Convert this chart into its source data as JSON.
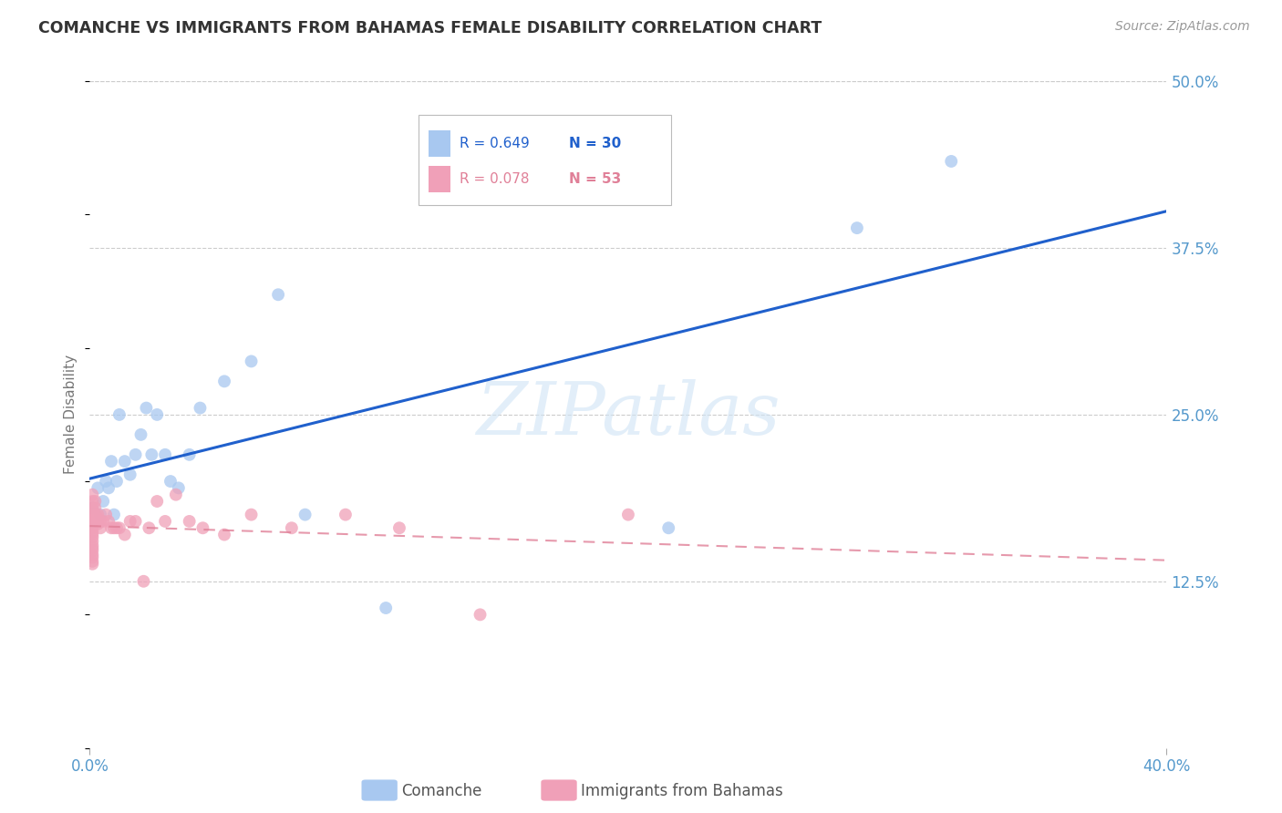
{
  "title": "COMANCHE VS IMMIGRANTS FROM BAHAMAS FEMALE DISABILITY CORRELATION CHART",
  "source": "Source: ZipAtlas.com",
  "ylabel": "Female Disability",
  "xlim": [
    0.0,
    0.4
  ],
  "ylim": [
    0.0,
    0.5
  ],
  "ytick_values": [
    0.125,
    0.25,
    0.375,
    0.5
  ],
  "ytick_labels": [
    "12.5%",
    "25.0%",
    "37.5%",
    "50.0%"
  ],
  "background_color": "#ffffff",
  "grid_color": "#cccccc",
  "comanche_color": "#A8C8F0",
  "bahamas_color": "#F0A0B8",
  "trend_blue": "#2060CC",
  "trend_pink": "#E08098",
  "comanche_x": [
    0.001,
    0.003,
    0.004,
    0.005,
    0.006,
    0.007,
    0.008,
    0.009,
    0.01,
    0.011,
    0.013,
    0.015,
    0.017,
    0.019,
    0.021,
    0.023,
    0.025,
    0.028,
    0.03,
    0.033,
    0.037,
    0.041,
    0.05,
    0.06,
    0.07,
    0.08,
    0.11,
    0.215,
    0.285,
    0.32
  ],
  "comanche_y": [
    0.18,
    0.195,
    0.175,
    0.185,
    0.2,
    0.195,
    0.215,
    0.175,
    0.2,
    0.25,
    0.215,
    0.205,
    0.22,
    0.235,
    0.255,
    0.22,
    0.25,
    0.22,
    0.2,
    0.195,
    0.22,
    0.255,
    0.275,
    0.29,
    0.34,
    0.175,
    0.105,
    0.165,
    0.39,
    0.44
  ],
  "bahamas_x": [
    0.001,
    0.001,
    0.001,
    0.001,
    0.001,
    0.001,
    0.001,
    0.001,
    0.001,
    0.001,
    0.001,
    0.001,
    0.001,
    0.001,
    0.001,
    0.001,
    0.001,
    0.001,
    0.001,
    0.001,
    0.002,
    0.002,
    0.002,
    0.002,
    0.003,
    0.003,
    0.003,
    0.004,
    0.004,
    0.005,
    0.006,
    0.007,
    0.008,
    0.009,
    0.01,
    0.011,
    0.013,
    0.015,
    0.017,
    0.02,
    0.022,
    0.025,
    0.028,
    0.032,
    0.037,
    0.042,
    0.05,
    0.06,
    0.075,
    0.095,
    0.115,
    0.145,
    0.2
  ],
  "bahamas_y": [
    0.19,
    0.185,
    0.18,
    0.178,
    0.175,
    0.172,
    0.17,
    0.168,
    0.165,
    0.162,
    0.16,
    0.158,
    0.155,
    0.152,
    0.15,
    0.148,
    0.145,
    0.143,
    0.14,
    0.138,
    0.185,
    0.18,
    0.175,
    0.17,
    0.175,
    0.172,
    0.168,
    0.17,
    0.165,
    0.17,
    0.175,
    0.17,
    0.165,
    0.165,
    0.165,
    0.165,
    0.16,
    0.17,
    0.17,
    0.125,
    0.165,
    0.185,
    0.17,
    0.19,
    0.17,
    0.165,
    0.16,
    0.175,
    0.165,
    0.175,
    0.165,
    0.1,
    0.175
  ]
}
